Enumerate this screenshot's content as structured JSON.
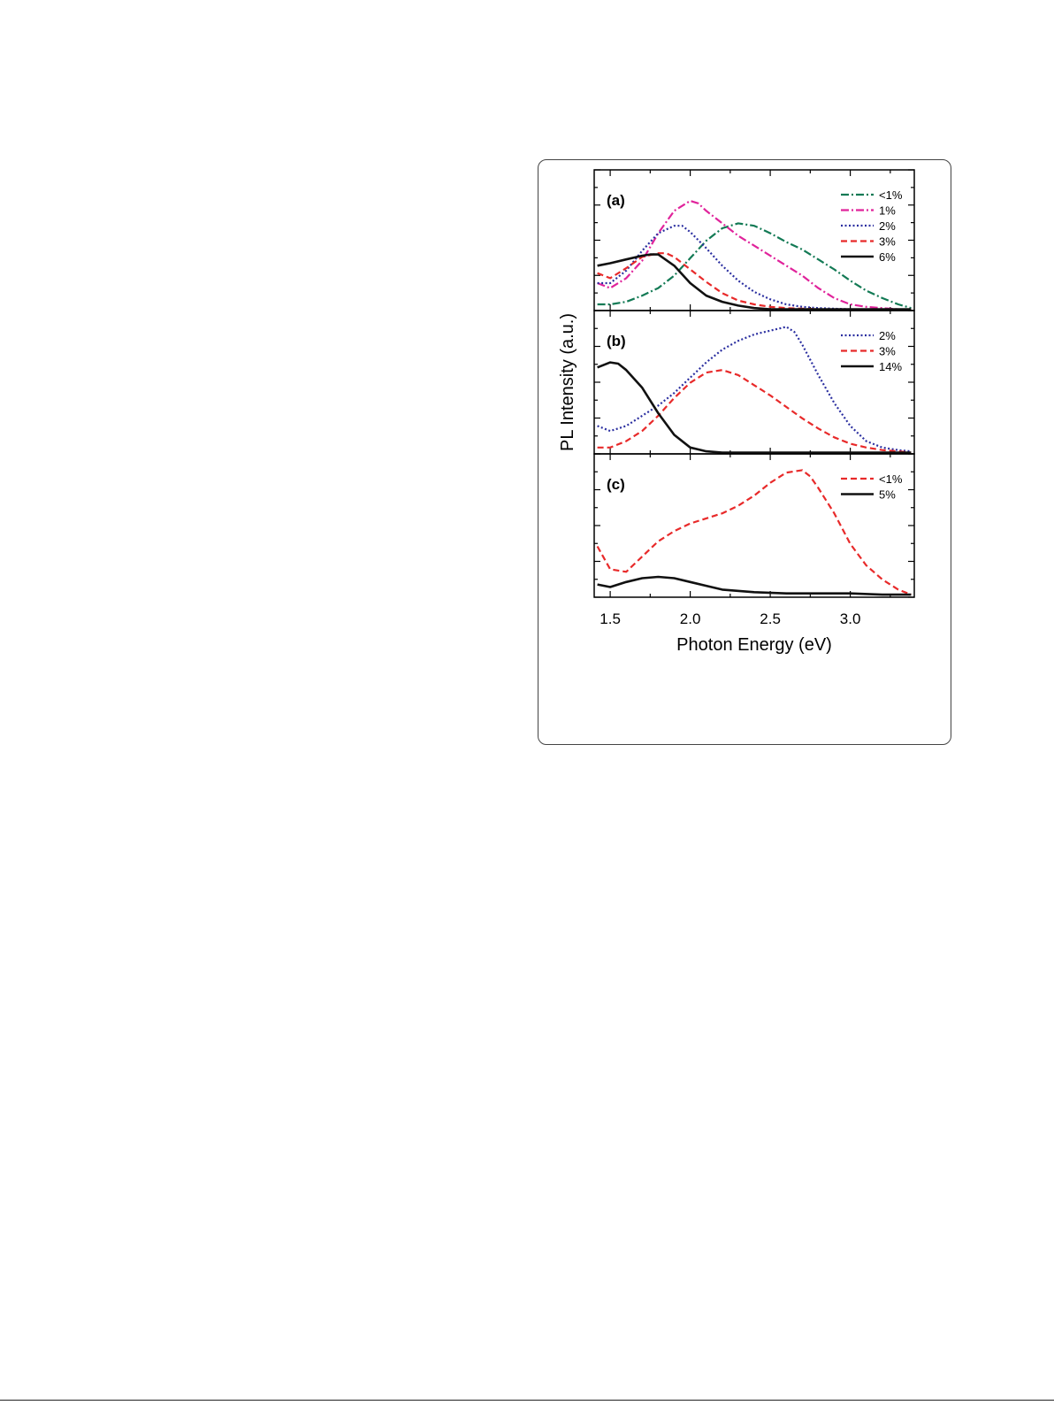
{
  "chart_data": {
    "type": "line",
    "xlabel": "Photon Energy (eV)",
    "ylabel": "PL Intensity (a.u.)",
    "xlim": [
      1.4,
      3.4
    ],
    "xticks": [
      "1.5",
      "2.0",
      "2.5",
      "3.0"
    ],
    "xtick_values": [
      1.5,
      2.0,
      2.5,
      3.0
    ],
    "grid": false,
    "legend_position": "top-right",
    "panels": [
      {
        "label": "(a)",
        "ylim": [
          0,
          1.1
        ],
        "series": [
          {
            "name": "<1%",
            "color": "#137a55",
            "dash": "dashdot",
            "x": [
              1.42,
              1.5,
              1.6,
              1.7,
              1.8,
              1.9,
              2.0,
              2.1,
              2.2,
              2.3,
              2.4,
              2.5,
              2.6,
              2.7,
              2.8,
              2.9,
              3.0,
              3.1,
              3.2,
              3.3,
              3.38
            ],
            "y": [
              0.05,
              0.05,
              0.07,
              0.12,
              0.18,
              0.28,
              0.42,
              0.56,
              0.66,
              0.7,
              0.68,
              0.62,
              0.55,
              0.49,
              0.41,
              0.33,
              0.24,
              0.16,
              0.1,
              0.05,
              0.02
            ]
          },
          {
            "name": "1%",
            "color": "#e0239b",
            "dash": "dashdot",
            "x": [
              1.42,
              1.5,
              1.6,
              1.7,
              1.8,
              1.9,
              2.0,
              2.05,
              2.1,
              2.2,
              2.3,
              2.4,
              2.5,
              2.6,
              2.7,
              2.8,
              2.9,
              3.0,
              3.1,
              3.2,
              3.3
            ],
            "y": [
              0.22,
              0.18,
              0.26,
              0.4,
              0.62,
              0.8,
              0.88,
              0.86,
              0.8,
              0.7,
              0.6,
              0.52,
              0.44,
              0.36,
              0.28,
              0.18,
              0.1,
              0.05,
              0.03,
              0.02,
              0.01
            ]
          },
          {
            "name": "2%",
            "color": "#2b2fa0",
            "dash": "dot",
            "x": [
              1.42,
              1.5,
              1.6,
              1.7,
              1.8,
              1.9,
              1.95,
              2.0,
              2.1,
              2.2,
              2.3,
              2.4,
              2.5,
              2.6,
              2.7,
              2.8,
              3.0,
              3.2,
              3.38
            ],
            "y": [
              0.22,
              0.22,
              0.32,
              0.48,
              0.62,
              0.68,
              0.68,
              0.63,
              0.5,
              0.36,
              0.24,
              0.15,
              0.09,
              0.05,
              0.03,
              0.02,
              0.01,
              0.01,
              0.01
            ]
          },
          {
            "name": "3%",
            "color": "#e82a2a",
            "dash": "dash",
            "x": [
              1.42,
              1.5,
              1.6,
              1.7,
              1.8,
              1.85,
              1.9,
              2.0,
              2.1,
              2.2,
              2.3,
              2.4,
              2.5,
              2.6,
              2.8,
              3.0,
              3.2,
              3.38
            ],
            "y": [
              0.3,
              0.26,
              0.34,
              0.43,
              0.46,
              0.46,
              0.43,
              0.33,
              0.23,
              0.14,
              0.08,
              0.05,
              0.03,
              0.02,
              0.01,
              0.01,
              0.01,
              0.01
            ]
          },
          {
            "name": "6%",
            "color": "#111111",
            "dash": "solid",
            "x": [
              1.42,
              1.5,
              1.6,
              1.7,
              1.75,
              1.8,
              1.9,
              2.0,
              2.1,
              2.2,
              2.3,
              2.4,
              2.5,
              2.6,
              2.8,
              3.0,
              3.2,
              3.38
            ],
            "y": [
              0.36,
              0.38,
              0.41,
              0.44,
              0.45,
              0.45,
              0.36,
              0.22,
              0.12,
              0.07,
              0.04,
              0.02,
              0.01,
              0.01,
              0.01,
              0.01,
              0.01,
              0.01
            ]
          }
        ]
      },
      {
        "label": "(b)",
        "ylim": [
          0,
          1.1
        ],
        "series": [
          {
            "name": "2%",
            "color": "#2b2fa0",
            "dash": "dot",
            "x": [
              1.42,
              1.5,
              1.6,
              1.7,
              1.8,
              1.9,
              2.0,
              2.1,
              2.2,
              2.3,
              2.4,
              2.5,
              2.6,
              2.65,
              2.7,
              2.8,
              2.9,
              3.0,
              3.1,
              3.2,
              3.3,
              3.38
            ],
            "y": [
              0.22,
              0.18,
              0.22,
              0.3,
              0.38,
              0.48,
              0.6,
              0.72,
              0.82,
              0.89,
              0.94,
              0.97,
              1.0,
              0.96,
              0.86,
              0.62,
              0.4,
              0.22,
              0.1,
              0.05,
              0.03,
              0.02
            ]
          },
          {
            "name": "3%",
            "color": "#e82a2a",
            "dash": "dash",
            "x": [
              1.42,
              1.5,
              1.6,
              1.7,
              1.8,
              1.9,
              2.0,
              2.1,
              2.2,
              2.3,
              2.4,
              2.5,
              2.6,
              2.7,
              2.8,
              2.9,
              3.0,
              3.1,
              3.2,
              3.3,
              3.38
            ],
            "y": [
              0.05,
              0.05,
              0.1,
              0.18,
              0.3,
              0.44,
              0.56,
              0.64,
              0.66,
              0.62,
              0.54,
              0.46,
              0.37,
              0.28,
              0.2,
              0.13,
              0.08,
              0.05,
              0.03,
              0.02,
              0.01
            ]
          },
          {
            "name": "14%",
            "color": "#111111",
            "dash": "solid",
            "x": [
              1.42,
              1.5,
              1.55,
              1.6,
              1.7,
              1.8,
              1.9,
              2.0,
              2.1,
              2.2,
              2.4,
              2.6,
              2.8,
              3.0,
              3.2,
              3.38
            ],
            "y": [
              0.68,
              0.72,
              0.71,
              0.66,
              0.52,
              0.32,
              0.15,
              0.05,
              0.02,
              0.01,
              0.01,
              0.01,
              0.01,
              0.01,
              0.01,
              0.01
            ]
          }
        ]
      },
      {
        "label": "(c)",
        "ylim": [
          0,
          1.1
        ],
        "series": [
          {
            "name": "<1%",
            "color": "#e82a2a",
            "dash": "dash",
            "x": [
              1.42,
              1.5,
              1.6,
              1.7,
              1.8,
              1.9,
              2.0,
              2.1,
              2.2,
              2.3,
              2.4,
              2.5,
              2.6,
              2.7,
              2.75,
              2.8,
              2.9,
              3.0,
              3.1,
              3.2,
              3.3,
              3.38
            ],
            "y": [
              0.4,
              0.22,
              0.2,
              0.32,
              0.44,
              0.52,
              0.58,
              0.62,
              0.66,
              0.72,
              0.8,
              0.9,
              0.98,
              1.0,
              0.95,
              0.86,
              0.66,
              0.42,
              0.25,
              0.14,
              0.06,
              0.02
            ]
          },
          {
            "name": "5%",
            "color": "#111111",
            "dash": "solid",
            "x": [
              1.42,
              1.5,
              1.6,
              1.7,
              1.8,
              1.9,
              2.0,
              2.1,
              2.2,
              2.4,
              2.6,
              2.8,
              3.0,
              3.2,
              3.38
            ],
            "y": [
              0.1,
              0.08,
              0.12,
              0.15,
              0.16,
              0.15,
              0.12,
              0.09,
              0.06,
              0.04,
              0.03,
              0.03,
              0.03,
              0.02,
              0.02
            ]
          }
        ]
      }
    ]
  }
}
